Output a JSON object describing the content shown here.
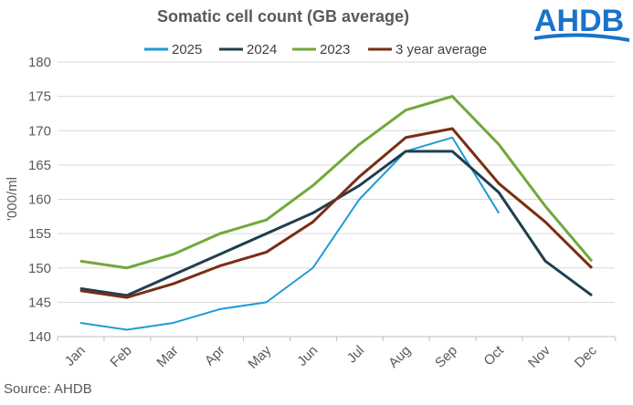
{
  "brand": "AHDB",
  "source": "Source: AHDB",
  "chart_data": {
    "type": "line",
    "title": "Somatic cell count (GB average)",
    "ylabel": "'000/ml",
    "xlabel": "",
    "ylim": [
      140,
      180
    ],
    "yticks": [
      140,
      145,
      150,
      155,
      160,
      165,
      170,
      175,
      180
    ],
    "grid": true,
    "legend_position": "top",
    "categories": [
      "Jan",
      "Feb",
      "Mar",
      "Apr",
      "May",
      "Jun",
      "Jul",
      "Aug",
      "Sep",
      "Oct",
      "Nov",
      "Dec"
    ],
    "series": [
      {
        "name": "2025",
        "color": "#1f9ad6",
        "values": [
          142,
          141,
          142,
          144,
          145,
          150,
          160,
          167,
          169,
          158,
          null,
          null
        ]
      },
      {
        "name": "2024",
        "color": "#1f3f4f",
        "values": [
          147,
          146,
          149,
          152,
          155,
          158,
          162,
          167,
          167,
          161,
          151,
          146
        ]
      },
      {
        "name": "2023",
        "color": "#72a83a",
        "values": [
          151,
          150,
          152,
          155,
          157,
          162,
          168,
          173,
          175,
          168,
          159,
          151
        ]
      },
      {
        "name": "3 year average",
        "color": "#7a2e12",
        "values": [
          146.7,
          145.7,
          147.7,
          150.3,
          152.3,
          156.7,
          163.3,
          169,
          170.3,
          162.3,
          156.7,
          150
        ]
      }
    ]
  }
}
